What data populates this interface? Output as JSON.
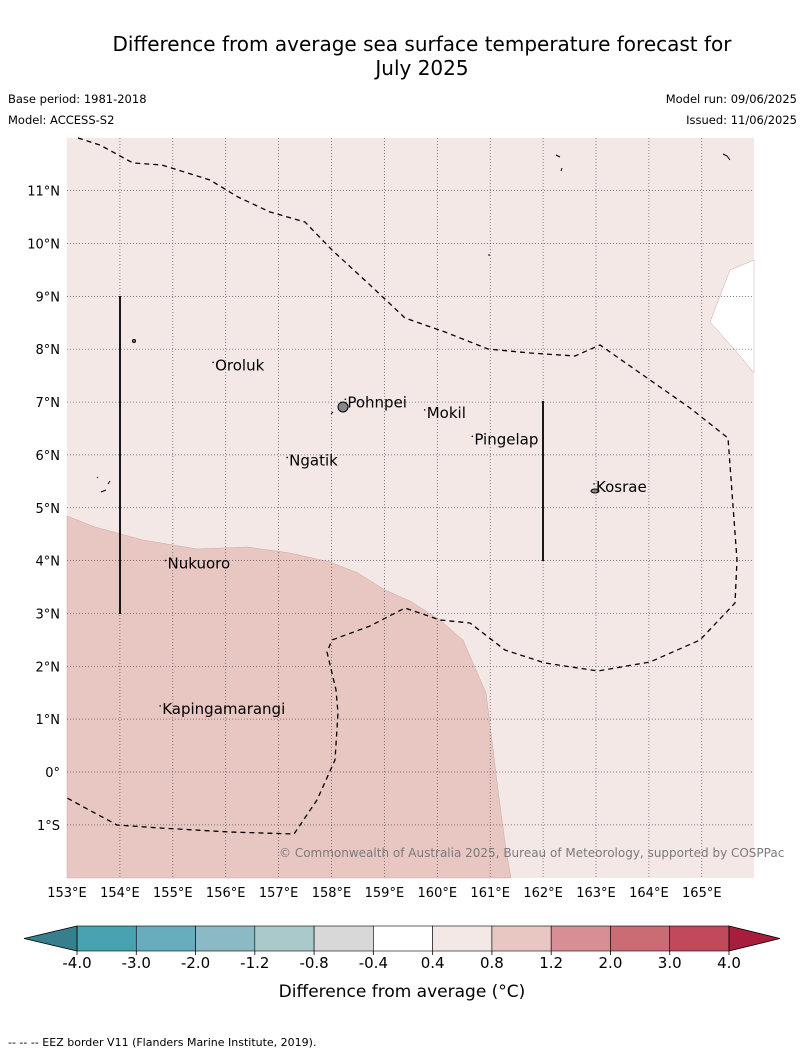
{
  "title_line1": "Difference from average sea surface temperature forecast for",
  "title_line2": "July 2025",
  "base_period": "Base period: 1981-2018",
  "model": "Model: ACCESS-S2",
  "model_run": "Model run: 09/06/2025",
  "issued": "Issued: 11/06/2025",
  "copyright": "© Commonwealth of Australia 2025, Bureau of Meteorology, supported by COSPPac",
  "footer": "-- --  -- EEZ border V11 (Flanders Marine Institute, 2019).",
  "map": {
    "lon_min": 153,
    "lon_max": 166,
    "lat_min": -2,
    "lat_max": 12,
    "lon_labels": [
      "153°E",
      "154°E",
      "155°E",
      "156°E",
      "157°E",
      "158°E",
      "159°E",
      "160°E",
      "161°E",
      "162°E",
      "163°E",
      "164°E",
      "165°E"
    ],
    "lat_labels": [
      "11°N",
      "10°N",
      "9°N",
      "8°N",
      "7°N",
      "6°N",
      "5°N",
      "4°N",
      "3°N",
      "2°N",
      "1°N",
      "0°",
      "1°S"
    ],
    "places": [
      {
        "name": "Oroluk",
        "lon": 155.8,
        "lat": 7.6
      },
      {
        "name": "Pohnpei",
        "lon": 158.3,
        "lat": 6.9
      },
      {
        "name": "Mokil",
        "lon": 159.8,
        "lat": 6.7
      },
      {
        "name": "Pingelap",
        "lon": 160.7,
        "lat": 6.2
      },
      {
        "name": "Ngatik",
        "lon": 157.2,
        "lat": 5.8
      },
      {
        "name": "Kosrae",
        "lon": 163.0,
        "lat": 5.3
      },
      {
        "name": "Nukuoro",
        "lon": 154.9,
        "lat": 3.85
      },
      {
        "name": "Kapingamarangi",
        "lon": 154.8,
        "lat": 1.1
      }
    ]
  },
  "colorbar": {
    "ticks": [
      "-4.0",
      "-3.0",
      "-2.0",
      "-1.2",
      "-0.8",
      "-0.4",
      "0.4",
      "0.8",
      "1.2",
      "2.0",
      "3.0",
      "4.0"
    ],
    "colors": [
      "#48a2b0",
      "#68adbd",
      "#8cbac4",
      "#a9c9cb",
      "#d8d8d8",
      "#ffffff",
      "#f4e8e7",
      "#e8c7c2",
      "#d78f95",
      "#cb6c75",
      "#c0495b"
    ],
    "low_extend_color": "#35808c",
    "high_extend_color": "#a91c3c",
    "label": "Difference from average (°C)"
  },
  "colors": {
    "band_04_08": "#f4e8e7",
    "band_08_12": "#e8c7c2"
  }
}
